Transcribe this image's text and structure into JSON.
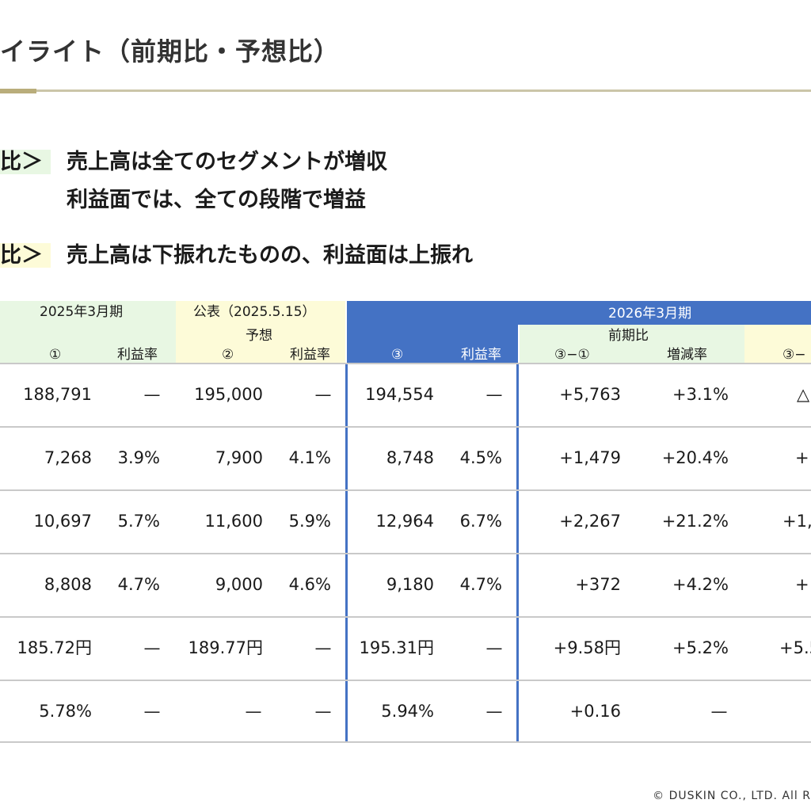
{
  "title": "イライト（前期比・予想比）",
  "points": [
    {
      "tag": "比＞",
      "lines": [
        "売上高は全てのセグメントが増収",
        "利益面では、全ての段階で増益"
      ]
    },
    {
      "tag": "比＞",
      "lines": [
        "売上高は下振れたものの、利益面は上振れ"
      ]
    }
  ],
  "table": {
    "headers": {
      "prev_period": "2025年3月期",
      "forecast_announce": "公表（2025.5.15）",
      "forecast_label": "予想",
      "current_period": "2026年3月期",
      "yoy_group": "前期比",
      "col_1": "①",
      "col_1_rate": "利益率",
      "col_2": "②",
      "col_2_rate": "利益率",
      "col_3": "③",
      "col_3_rate": "利益率",
      "col_diff1": "③−①",
      "col_diff1_rate": "増減率",
      "col_diff2_partial": "③−"
    },
    "rows": [
      {
        "c1": "188,791",
        "c1r": "—",
        "c2": "195,000",
        "c2r": "—",
        "c3": "194,554",
        "c3r": "—",
        "d1": "+5,763",
        "d1r": "+3.1%",
        "d2": "△"
      },
      {
        "c1": "7,268",
        "c1r": "3.9%",
        "c2": "7,900",
        "c2r": "4.1%",
        "c3": "8,748",
        "c3r": "4.5%",
        "d1": "+1,479",
        "d1r": "+20.4%",
        "d2": "+"
      },
      {
        "c1": "10,697",
        "c1r": "5.7%",
        "c2": "11,600",
        "c2r": "5.9%",
        "c3": "12,964",
        "c3r": "6.7%",
        "d1": "+2,267",
        "d1r": "+21.2%",
        "d2": "+1,"
      },
      {
        "c1": "8,808",
        "c1r": "4.7%",
        "c2": "9,000",
        "c2r": "4.6%",
        "c3": "9,180",
        "c3r": "4.7%",
        "d1": "+372",
        "d1r": "+4.2%",
        "d2": "+"
      },
      {
        "c1": "185.72円",
        "c1r": "—",
        "c2": "189.77円",
        "c2r": "—",
        "c3": "195.31円",
        "c3r": "—",
        "d1": "+9.58円",
        "d1r": "+5.2%",
        "d2": "+5.5"
      },
      {
        "c1": "5.78%",
        "c1r": "—",
        "c2": "—",
        "c2r": "—",
        "c3": "5.94%",
        "c3r": "—",
        "d1": "+0.16",
        "d1r": "—",
        "d2": ""
      }
    ]
  },
  "footer": "© DUSKIN CO., LTD. All R",
  "colors": {
    "green_header": "#e8f7e3",
    "yellow_header": "#fdfbd8",
    "blue_header": "#4472c4",
    "rule": "#cbc5a8"
  }
}
